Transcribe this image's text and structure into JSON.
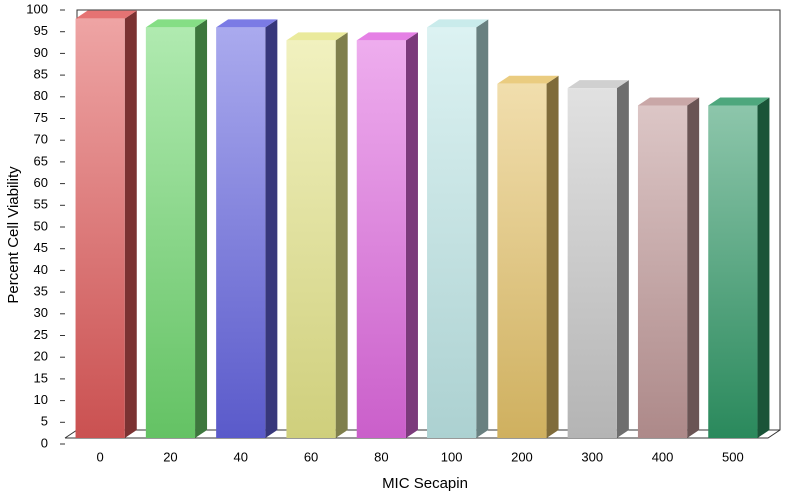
{
  "chart_data": {
    "type": "bar3d",
    "x_label": "MIC Secapin",
    "y_label": "Percent Cell Viability",
    "categories": [
      "0",
      "20",
      "40",
      "60",
      "80",
      "100",
      "200",
      "300",
      "400",
      "500"
    ],
    "values": [
      98,
      96,
      96,
      93,
      93,
      96,
      83,
      82,
      78,
      78
    ],
    "colors": [
      "#e05a5a",
      "#6fd86f",
      "#6464e0",
      "#e6e68a",
      "#e06ae0",
      "#bfe8e8",
      "#e6c36a",
      "#c8c8c8",
      "#c09898",
      "#2f9866"
    ],
    "ylim": [
      0,
      100
    ],
    "yticks": [
      0,
      5,
      10,
      15,
      20,
      25,
      30,
      35,
      40,
      45,
      50,
      55,
      60,
      65,
      70,
      75,
      80,
      85,
      90,
      95,
      100
    ],
    "grid": false
  }
}
